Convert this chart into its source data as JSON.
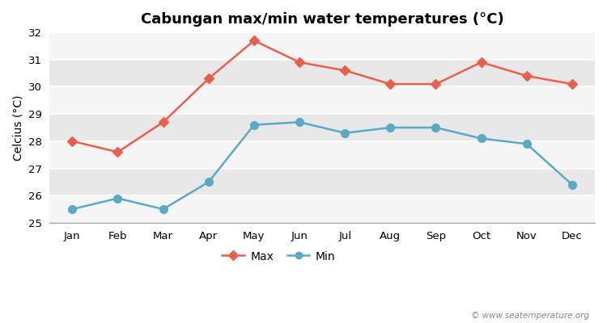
{
  "title": "Cabungan max/min water temperatures (°C)",
  "ylabel": "Celcius (°C)",
  "months": [
    "Jan",
    "Feb",
    "Mar",
    "Apr",
    "May",
    "Jun",
    "Jul",
    "Aug",
    "Sep",
    "Oct",
    "Nov",
    "Dec"
  ],
  "max_values": [
    28.0,
    27.6,
    28.7,
    30.3,
    31.7,
    30.9,
    30.6,
    30.1,
    30.1,
    30.9,
    30.4,
    30.1
  ],
  "min_values": [
    25.5,
    25.9,
    25.5,
    26.5,
    28.6,
    28.7,
    28.3,
    28.5,
    28.5,
    28.1,
    27.9,
    26.4
  ],
  "max_color": "#e8604c",
  "min_color": "#5aa9c8",
  "bg_color": "#ffffff",
  "plot_bg_light": "#f5f5f5",
  "plot_bg_dark": "#e8e8e8",
  "ylim": [
    25,
    32
  ],
  "yticks": [
    25,
    26,
    27,
    28,
    29,
    30,
    31,
    32
  ],
  "watermark": "© www.seatemperature.org",
  "legend_labels": [
    "Max",
    "Min"
  ],
  "title_fontsize": 13,
  "axis_fontsize": 10,
  "tick_fontsize": 9.5
}
